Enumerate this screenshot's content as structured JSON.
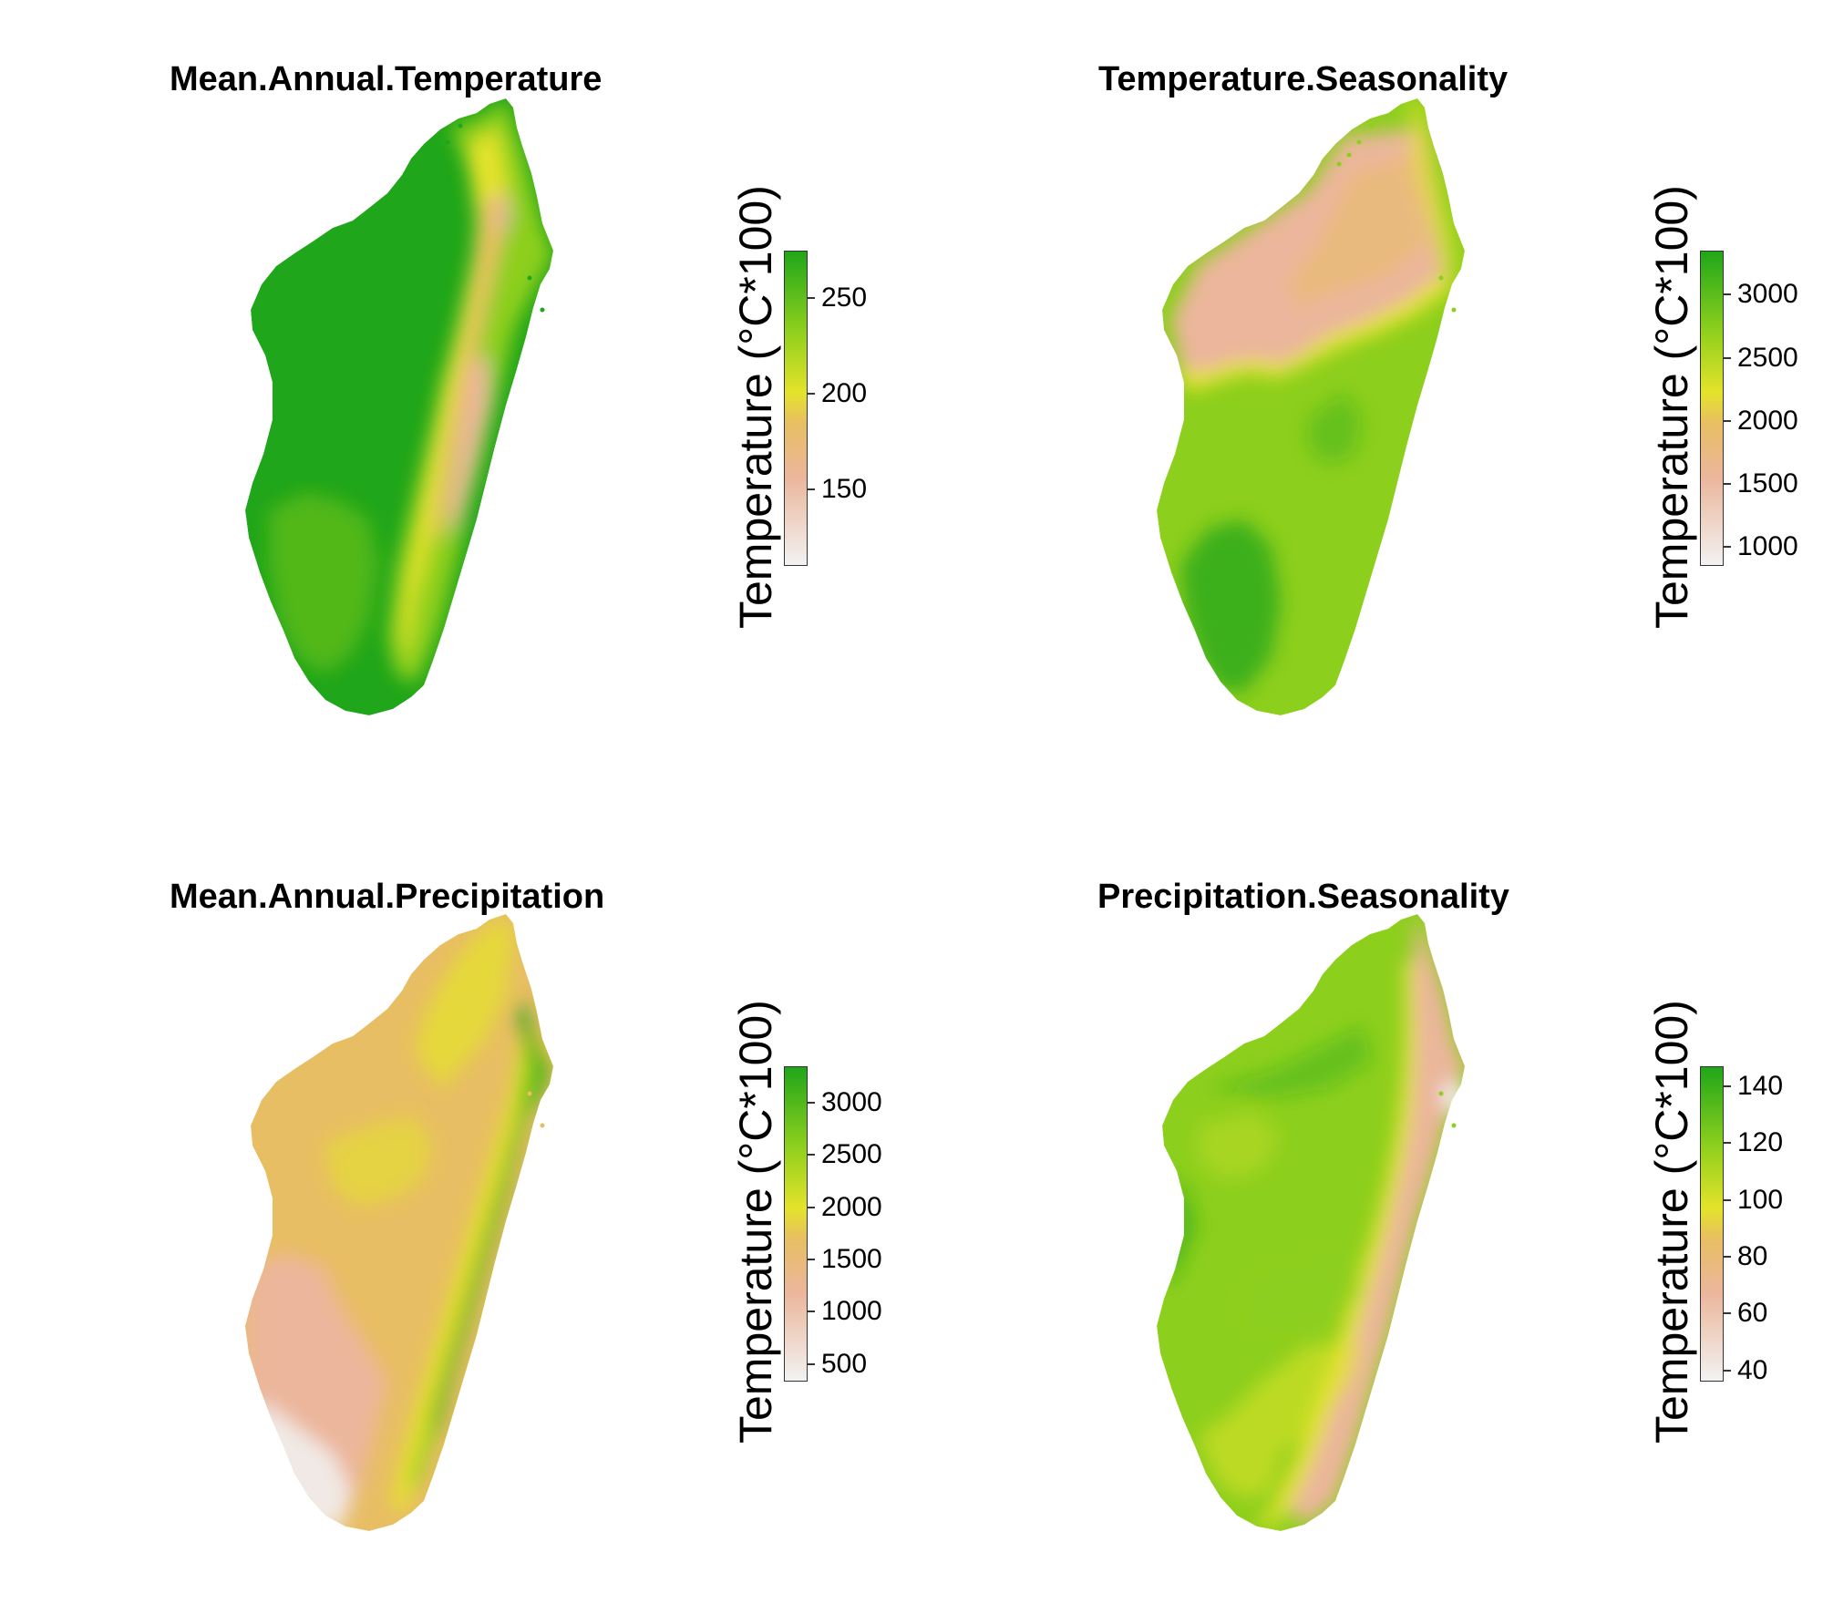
{
  "colors": {
    "low": "#f2f2f2",
    "pink": "#ebb69b",
    "orange": "#e8be64",
    "yellow": "#e4e32a",
    "lightgreen": "#8dcf1d",
    "green": "#20a61a"
  },
  "panels": [
    {
      "title": "Mean.Annual.Temperature",
      "legend_title": "Temperature (°C*100)",
      "legend_range": [
        110,
        275
      ],
      "ticks": [
        {
          "label": "250",
          "value": 250
        },
        {
          "label": "200",
          "value": 200
        },
        {
          "label": "150",
          "value": 150
        }
      ],
      "pattern": "mat"
    },
    {
      "title": "Temperature.Seasonality",
      "legend_title": "Temperature (°C*100)",
      "legend_range": [
        850,
        3350
      ],
      "ticks": [
        {
          "label": "3000",
          "value": 3000
        },
        {
          "label": "2500",
          "value": 2500
        },
        {
          "label": "2000",
          "value": 2000
        },
        {
          "label": "1500",
          "value": 1500
        },
        {
          "label": "1000",
          "value": 1000
        }
      ],
      "pattern": "ts"
    },
    {
      "title": "Mean.Annual.Precipitation",
      "legend_title": "Temperature (°C*100)",
      "legend_range": [
        330,
        3350
      ],
      "ticks": [
        {
          "label": "3000",
          "value": 3000
        },
        {
          "label": "2500",
          "value": 2500
        },
        {
          "label": "2000",
          "value": 2000
        },
        {
          "label": "1500",
          "value": 1500
        },
        {
          "label": "1000",
          "value": 1000
        },
        {
          "label": "500",
          "value": 500
        }
      ],
      "pattern": "map"
    },
    {
      "title": "Precipitation.Seasonality",
      "legend_title": "Temperature (°C*100)",
      "legend_range": [
        36,
        147
      ],
      "ticks": [
        {
          "label": "140",
          "value": 140
        },
        {
          "label": "120",
          "value": 120
        },
        {
          "label": "100",
          "value": 100
        },
        {
          "label": "80",
          "value": 80
        },
        {
          "label": "60",
          "value": 60
        },
        {
          "label": "40",
          "value": 40
        }
      ],
      "pattern": "ps"
    }
  ]
}
